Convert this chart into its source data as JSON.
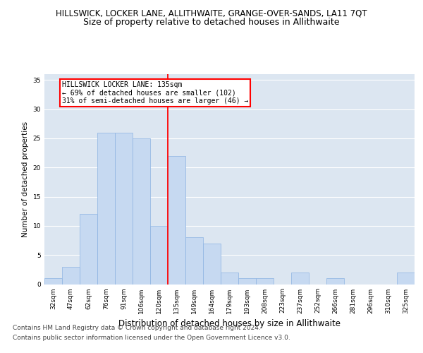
{
  "title_main": "HILLSWICK, LOCKER LANE, ALLITHWAITE, GRANGE-OVER-SANDS, LA11 7QT",
  "title_sub": "Size of property relative to detached houses in Allithwaite",
  "xlabel": "Distribution of detached houses by size in Allithwaite",
  "ylabel": "Number of detached properties",
  "categories": [
    "32sqm",
    "47sqm",
    "62sqm",
    "76sqm",
    "91sqm",
    "106sqm",
    "120sqm",
    "135sqm",
    "149sqm",
    "164sqm",
    "179sqm",
    "193sqm",
    "208sqm",
    "223sqm",
    "237sqm",
    "252sqm",
    "266sqm",
    "281sqm",
    "296sqm",
    "310sqm",
    "325sqm"
  ],
  "values": [
    1,
    3,
    12,
    26,
    26,
    25,
    10,
    22,
    8,
    7,
    2,
    1,
    1,
    0,
    2,
    0,
    1,
    0,
    0,
    0,
    2
  ],
  "bar_color": "#c6d9f1",
  "bar_edge_color": "#8db3e2",
  "red_line_x": 6.5,
  "red_line_label": "HILLSWICK LOCKER LANE: 135sqm",
  "annotation_line1": "← 69% of detached houses are smaller (102)",
  "annotation_line2": "31% of semi-detached houses are larger (46) →",
  "annotation_box_color": "white",
  "annotation_box_edge": "red",
  "ylim": [
    0,
    36
  ],
  "yticks": [
    0,
    5,
    10,
    15,
    20,
    25,
    30,
    35
  ],
  "footer1": "Contains HM Land Registry data © Crown copyright and database right 2024.",
  "footer2": "Contains public sector information licensed under the Open Government Licence v3.0.",
  "background_color": "#dce6f1",
  "grid_color": "white",
  "title_main_fontsize": 8.5,
  "title_sub_fontsize": 9,
  "xlabel_fontsize": 8.5,
  "ylabel_fontsize": 7.5,
  "tick_fontsize": 6.5,
  "footer_fontsize": 6.5,
  "annot_fontsize": 7
}
